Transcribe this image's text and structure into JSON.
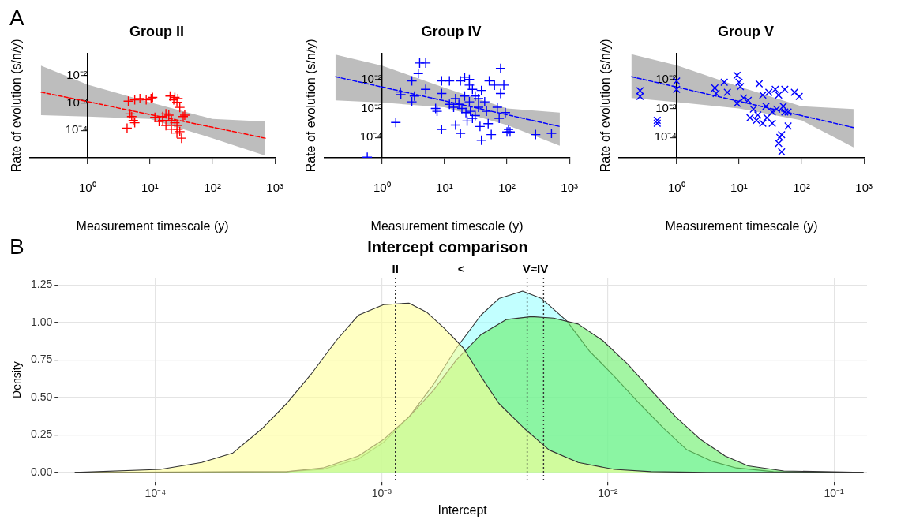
{
  "chart_data": [
    {
      "type": "scatter",
      "title": "Group II",
      "xlabel": "Measurement timescale (y)",
      "ylabel": "Rate of evolution (s/n/y)",
      "annotations": [
        "A"
      ],
      "log": "xy",
      "grid": false,
      "xlim": [
        0.12,
        1000
      ],
      "ylim": [
        1e-05,
        0.065
      ],
      "xticks": [
        {
          "value": 1,
          "label": "10⁰"
        },
        {
          "value": 10,
          "label": "10¹"
        },
        {
          "value": 100,
          "label": "10²"
        },
        {
          "value": 1000,
          "label": "10³"
        }
      ],
      "yticks": [
        {
          "value": 0.0001,
          "label": "10⁻⁴"
        },
        {
          "value": 0.001,
          "label": "10⁻³"
        },
        {
          "value": 0.01,
          "label": "10⁻²"
        }
      ],
      "series": [
        {
          "type": "line",
          "color": "#ff0000",
          "line_style": "dashed",
          "marker": "none",
          "x": [
            0.18,
            1,
            10,
            100,
            700
          ],
          "values": [
            0.0025,
            0.00112,
            0.00038,
            0.00013,
            5.2e-05
          ],
          "lower": [
            0.00036,
            0.00032,
            0.00026,
            5.2e-05,
            1.2e-05
          ],
          "upper": [
            0.023,
            0.0047,
            0.00105,
            0.00026,
            0.00021
          ]
        },
        {
          "type": "scatter",
          "color": "#ff0000",
          "marker": "cross",
          "x": [
            4.5,
            5.7,
            6.9,
            8.7,
            10.4,
            11,
            21,
            25,
            28,
            27,
            24,
            4.8,
            5.1,
            5.4,
            5.7,
            4.3,
            12,
            14,
            16,
            18,
            20,
            22,
            25,
            27,
            28,
            30,
            32,
            34,
            36,
            30,
            18,
            22,
            27,
            16
          ],
          "values": [
            0.00117,
            0.0013,
            0.00145,
            0.0013,
            0.00145,
            0.0016,
            0.0018,
            0.0016,
            0.00145,
            0.00105,
            0.0013,
            0.0004,
            0.00032,
            0.00023,
            0.00019,
            0.00012,
            0.0003,
            0.00021,
            0.00023,
            0.0004,
            0.00036,
            0.00023,
            0.00019,
            0.00015,
            0.00011,
            9e-05,
            5.2e-05,
            0.00032,
            0.00036,
            0.00069,
            0.00015,
            0.00011,
            8e-05,
            0.00032
          ]
        }
      ]
    },
    {
      "type": "scatter",
      "title": "Group IV",
      "xlabel": "Measurement timescale (y)",
      "ylabel": "Rate of evolution (s/n/y)",
      "log": "xy",
      "grid": false,
      "xlim": [
        0.12,
        1000
      ],
      "ylim": [
        2e-05,
        0.08
      ],
      "xticks": [
        {
          "value": 1,
          "label": "10⁰"
        },
        {
          "value": 10,
          "label": "10¹"
        },
        {
          "value": 100,
          "label": "10²"
        },
        {
          "value": 1000,
          "label": "10³"
        }
      ],
      "yticks": [
        {
          "value": 0.0001,
          "label": "10⁻⁴"
        },
        {
          "value": 0.001,
          "label": "10⁻³"
        },
        {
          "value": 0.01,
          "label": "10⁻²"
        }
      ],
      "series": [
        {
          "type": "line",
          "color": "#0000ff",
          "line_style": "dashed",
          "marker": "none",
          "x": [
            0.18,
            1,
            10,
            100,
            700
          ],
          "values": [
            0.0125,
            0.0055,
            0.00184,
            0.00061,
            0.00024
          ],
          "lower": [
            0.0019,
            0.0016,
            0.0011,
            0.00027,
            5.2e-05
          ],
          "upper": [
            0.072,
            0.03,
            0.0052,
            0.001,
            0.00072
          ]
        },
        {
          "type": "scatter",
          "color": "#0000ff",
          "marker": "cross",
          "x": [
            0.58,
            1.66,
            1.97,
            2,
            3,
            3,
            3.8,
            4,
            5,
            5,
            3.3,
            7.2,
            7.6,
            9,
            9,
            9,
            12,
            18,
            21,
            25,
            28,
            15,
            17,
            19,
            15,
            18,
            22,
            25,
            28,
            31,
            35,
            37,
            39,
            39,
            44,
            47,
            52,
            56,
            63,
            70,
            79,
            79,
            89,
            94,
            106,
            100,
            112,
            287,
            516,
            23,
            12,
            14,
            21,
            25,
            31,
            50,
            75,
            26,
            35
          ],
          "values": [
            2.1e-05,
            0.00033,
            0.0037,
            0.003,
            0.009,
            0.0017,
            0.016,
            0.037,
            0.037,
            0.0046,
            0.0027,
            0.001,
            0.0008,
            0.00019,
            0.0033,
            0.009,
            0.009,
            0.009,
            0.012,
            0.01,
            0.0046,
            0.0022,
            0.0014,
            0.001,
            0.00027,
            0.00014,
            0.00072,
            0.0017,
            0.00046,
            0.0027,
            0.0011,
            0.00024,
            8e-05,
            0.0042,
            0.0017,
            0.0008,
            0.009,
            0.000126,
            0.0064,
            0.0011,
            0.0033,
            0.024,
            0.0064,
            0.00072,
            0.00019,
            0.000155,
            0.000155,
            0.000126,
            0.00014,
            0.00037,
            0.0014,
            0.0011,
            0.0027,
            0.0064,
            0.00057,
            0.0003,
            0.00046,
            0.0008,
            0.0022
          ]
        }
      ]
    },
    {
      "type": "scatter",
      "title": "Group V",
      "xlabel": "Measurement timescale (y)",
      "ylabel": "Rate of evolution (s/n/y)",
      "log": "xy",
      "grid": false,
      "xlim": [
        0.12,
        1000
      ],
      "ylim": [
        2e-05,
        0.08
      ],
      "xticks": [
        {
          "value": 1,
          "label": "10⁰"
        },
        {
          "value": 10,
          "label": "10¹"
        },
        {
          "value": 100,
          "label": "10²"
        },
        {
          "value": 1000,
          "label": "10³"
        }
      ],
      "yticks": [
        {
          "value": 0.0001,
          "label": "10⁻⁴"
        },
        {
          "value": 0.001,
          "label": "10⁻³"
        },
        {
          "value": 0.01,
          "label": "10⁻²"
        }
      ],
      "series": [
        {
          "type": "line",
          "color": "#0000ff",
          "line_style": "dashed",
          "marker": "none",
          "x": [
            0.19,
            1,
            10,
            100,
            680
          ],
          "values": [
            0.0125,
            0.0055,
            0.00177,
            0.00057,
            0.00022
          ],
          "lower": [
            0.0023,
            0.00166,
            0.001,
            0.00039,
            4.6e-05
          ],
          "upper": [
            0.075,
            0.031,
            0.0057,
            0.0012,
            0.00095
          ]
        },
        {
          "type": "scatter",
          "color": "#0000ff",
          "marker": "x",
          "x": [
            0.26,
            0.26,
            0.49,
            0.49,
            1,
            1,
            4.1,
            4.3,
            5.8,
            6.5,
            9.3,
            10,
            10.5,
            9.3,
            11.8,
            14,
            19,
            21,
            24,
            27,
            30,
            34,
            38,
            43,
            48,
            48,
            54,
            54,
            61,
            77,
            92,
            17,
            20,
            24,
            28,
            34,
            40,
            45,
            51,
            15,
            43,
            61
          ],
          "values": [
            0.0041,
            0.0026,
            0.00039,
            0.00031,
            0.0089,
            0.0046,
            0.0051,
            0.0033,
            0.008,
            0.0036,
            0.014,
            0.008,
            0.0057,
            0.0015,
            0.0023,
            0.0019,
            0.00039,
            0.0071,
            0.0029,
            0.0012,
            0.0036,
            0.00076,
            0.0046,
            6.3e-05,
            0.000125,
            3.2e-05,
            0.0046,
            0.00076,
            0.00025,
            0.0036,
            0.0026,
            0.00095,
            0.0006,
            0.00031,
            0.00048,
            0.00031,
            0.00095,
            0.0001,
            0.0012,
            0.00048,
            0.0029,
            0.00076
          ]
        }
      ]
    },
    {
      "type": "area",
      "title": "Intercept comparison",
      "xlabel": "Intercept",
      "ylabel": "Density",
      "annotations": [
        "B",
        "<",
        "V≈IV"
      ],
      "log": "x",
      "grid": true,
      "xlim": [
        3.7e-05,
        0.14
      ],
      "ylim": [
        -0.065,
        1.3
      ],
      "xticks": [
        {
          "value": 0.0001,
          "label": "10⁻⁴"
        },
        {
          "value": 0.001,
          "label": "10⁻³"
        },
        {
          "value": 0.01,
          "label": "10⁻²"
        },
        {
          "value": 0.1,
          "label": "10⁻¹"
        }
      ],
      "yticks": [
        {
          "value": 0,
          "label": "0.00"
        },
        {
          "value": 0.25,
          "label": "0.25"
        },
        {
          "value": 0.5,
          "label": "0.50"
        },
        {
          "value": 0.75,
          "label": "0.75"
        },
        {
          "value": 1,
          "label": "1.00"
        },
        {
          "value": 1.25,
          "label": "1.25"
        }
      ],
      "ref_lines": [
        {
          "axis": "x",
          "value": 0.00115,
          "label": "II",
          "color": "#333333",
          "line_style": "dotted"
        },
        {
          "axis": "x",
          "value": 0.0044,
          "color": "#333333",
          "line_style": "dotted"
        },
        {
          "axis": "x",
          "value": 0.0052,
          "color": "#333333",
          "line_style": "dotted"
        }
      ],
      "series": [
        {
          "color": "#ffff99",
          "x": [
            4.4e-05,
            0.000105,
            0.00016,
            0.00022,
            0.000295,
            0.00038,
            0.00049,
            0.00063,
            0.00079,
            0.00102,
            0.00132,
            0.00158,
            0.0019,
            0.0023,
            0.00275,
            0.0033,
            0.0043,
            0.0055,
            0.0074,
            0.0107,
            0.0155,
            0.0275,
            0.135
          ],
          "values": [
            0,
            0.02,
            0.066,
            0.13,
            0.29,
            0.46,
            0.66,
            0.88,
            1.05,
            1.12,
            1.13,
            1.07,
            0.96,
            0.83,
            0.64,
            0.46,
            0.29,
            0.15,
            0.066,
            0.02,
            0.005,
            0,
            0
          ]
        },
        {
          "color": "#66ee66",
          "x": [
            4.4e-05,
            0.00038,
            0.00055,
            0.00079,
            0.00102,
            0.00132,
            0.0017,
            0.00214,
            0.00275,
            0.00355,
            0.0046,
            0.00575,
            0.0074,
            0.0095,
            0.0123,
            0.0155,
            0.02,
            0.0257,
            0.033,
            0.0417,
            0.06,
            0.135
          ],
          "values": [
            0,
            0.005,
            0.03,
            0.11,
            0.22,
            0.37,
            0.55,
            0.75,
            0.92,
            1.02,
            1.04,
            1.03,
            0.99,
            0.88,
            0.72,
            0.55,
            0.37,
            0.22,
            0.11,
            0.044,
            0.01,
            0
          ]
        },
        {
          "color": "#99ffff",
          "x": [
            4.4e-05,
            0.00038,
            0.00055,
            0.00079,
            0.00102,
            0.00132,
            0.0017,
            0.00214,
            0.00275,
            0.0033,
            0.0042,
            0.0051,
            0.0066,
            0.0083,
            0.0107,
            0.0138,
            0.0178,
            0.0224,
            0.0288,
            0.037,
            0.054,
            0.135
          ],
          "values": [
            0,
            0.005,
            0.02,
            0.09,
            0.2,
            0.37,
            0.59,
            0.83,
            1.05,
            1.16,
            1.21,
            1.16,
            1.01,
            0.81,
            0.64,
            0.46,
            0.29,
            0.15,
            0.075,
            0.03,
            0.005,
            0
          ]
        }
      ]
    }
  ]
}
